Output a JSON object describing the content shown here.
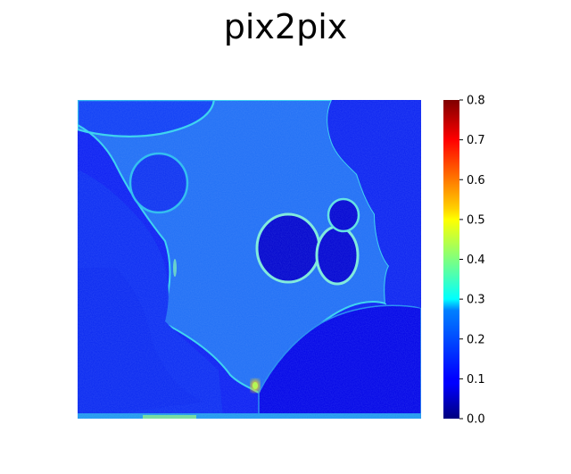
{
  "chart_data": {
    "type": "heatmap",
    "title": "pix2pix",
    "xlabel": "",
    "ylabel": "",
    "axes_visible": false,
    "colormap": "jet",
    "colorbar": {
      "vmin": 0.0,
      "vmax": 0.8,
      "ticks": [
        "0.0",
        "0.1",
        "0.2",
        "0.3",
        "0.4",
        "0.5",
        "0.6",
        "0.7",
        "0.8"
      ]
    },
    "value_levels": {
      "background": 0.08,
      "cytoplasm": 0.2,
      "nuclei_interior": 0.07,
      "nucleus_rims": 0.28,
      "cell_edge": 0.26,
      "bright_spot_bottom": 0.48
    }
  }
}
